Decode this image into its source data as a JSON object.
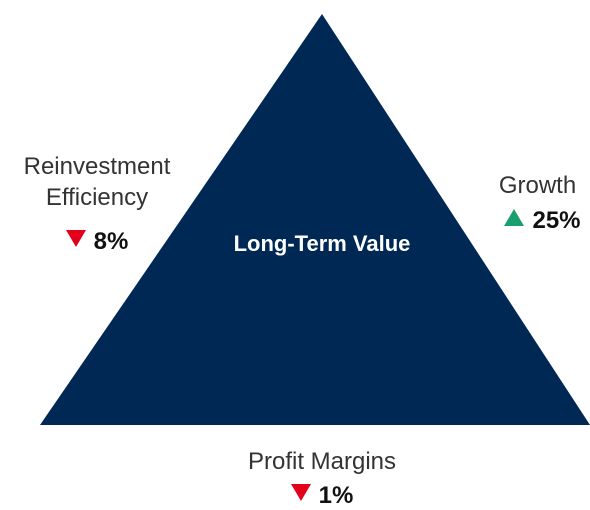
{
  "center": {
    "title": "Long-Term Value"
  },
  "factors": [
    {
      "label": "Reinvestment Efficiency",
      "value": "8%",
      "direction": "down"
    },
    {
      "label": "Growth",
      "value": "25%",
      "direction": "up"
    },
    {
      "label": "Profit Margins",
      "value": "1%",
      "direction": "down"
    }
  ],
  "colors": {
    "triangle": "#002855",
    "up": "#1a9e6e",
    "down": "#e2001a"
  }
}
